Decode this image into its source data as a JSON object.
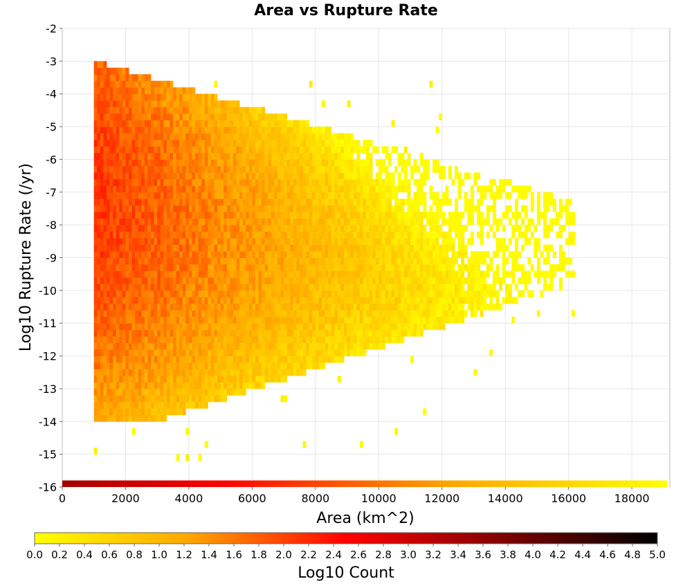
{
  "chart_data": {
    "type": "heatmap",
    "title": "Area vs Rupture Rate",
    "xlabel": "Area (km^2)",
    "ylabel": "Log10 Rupture Rate (/yr)",
    "xlim": [
      0,
      19200
    ],
    "ylim": [
      -16,
      -2
    ],
    "x_ticks": [
      "0",
      "2000",
      "4000",
      "6000",
      "8000",
      "10000",
      "12000",
      "14000",
      "16000",
      "18000"
    ],
    "y_ticks": [
      "-2",
      "-3",
      "-4",
      "-5",
      "-6",
      "-7",
      "-8",
      "-9",
      "-10",
      "-11",
      "-12",
      "-13",
      "-14",
      "-15",
      "-16"
    ],
    "grid": true,
    "bin_width_x": 100,
    "bin_height_y": 0.2,
    "x_data_range": [
      1000,
      16200
    ],
    "colorbar": {
      "label": "Log10 Count",
      "min": 0.0,
      "max": 5.0,
      "ticks": [
        "0.0",
        "0.2",
        "0.4",
        "0.6",
        "0.8",
        "1.0",
        "1.2",
        "1.4",
        "1.6",
        "1.8",
        "2.0",
        "2.2",
        "2.4",
        "2.6",
        "2.8",
        "3.0",
        "3.2",
        "3.4",
        "3.6",
        "3.8",
        "4.0",
        "4.2",
        "4.4",
        "4.6",
        "4.8",
        "5.0"
      ],
      "colors": [
        "#ffff00",
        "#ffa500",
        "#ff0000",
        "#800000",
        "#000000"
      ]
    },
    "density_description_points": [
      {
        "x": 1500,
        "y": -7.2,
        "log10_count": 2.0
      },
      {
        "x": 3000,
        "y": -8.5,
        "log10_count": 1.5
      },
      {
        "x": 6000,
        "y": -10.0,
        "log10_count": 1.2
      },
      {
        "x": 9000,
        "y": -10.0,
        "log10_count": 0.9
      },
      {
        "x": 12000,
        "y": -9.5,
        "log10_count": 0.5
      },
      {
        "x": 15000,
        "y": -9.0,
        "log10_count": 0.0
      }
    ]
  }
}
